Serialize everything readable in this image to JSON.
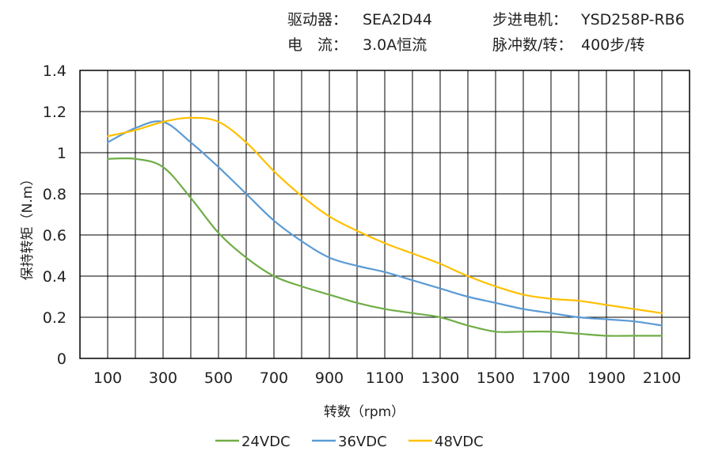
{
  "info": {
    "driver_label": "驱动器：",
    "driver_value": "SEA2D44",
    "current_label": "电　流：",
    "current_value": "3.0A恒流",
    "motor_label": "步进电机：",
    "motor_value": "YSD258P-RB6",
    "pulse_label": "脉冲数/转：",
    "pulse_value": "400步/转"
  },
  "chart_data": {
    "type": "line",
    "title": "",
    "xlabel": "转数（rpm）",
    "ylabel": "保持转矩（N.m）",
    "xlim": [
      100,
      2100
    ],
    "ylim": [
      0,
      1.4
    ],
    "x_ticks": [
      "100",
      "300",
      "500",
      "700",
      "900",
      "1100",
      "1300",
      "1500",
      "1700",
      "1900",
      "2100"
    ],
    "y_ticks": [
      "0",
      "0.2",
      "0.4",
      "0.6",
      "0.8",
      "1",
      "1.2",
      "1.4"
    ],
    "grid": true,
    "legend_position": "bottom",
    "x": [
      100,
      200,
      300,
      400,
      500,
      600,
      700,
      800,
      900,
      1000,
      1100,
      1200,
      1300,
      1400,
      1500,
      1600,
      1700,
      1800,
      1900,
      2000,
      2100
    ],
    "series": [
      {
        "name": "24VDC",
        "color": "#70AD47",
        "values": [
          0.97,
          0.97,
          0.93,
          0.78,
          0.61,
          0.49,
          0.4,
          0.35,
          0.31,
          0.27,
          0.24,
          0.22,
          0.2,
          0.16,
          0.13,
          0.13,
          0.13,
          0.12,
          0.11,
          0.11,
          0.11
        ]
      },
      {
        "name": "36VDC",
        "color": "#5B9BD5",
        "values": [
          1.05,
          1.12,
          1.15,
          1.05,
          0.93,
          0.8,
          0.67,
          0.57,
          0.49,
          0.45,
          0.42,
          0.38,
          0.34,
          0.3,
          0.27,
          0.24,
          0.22,
          0.2,
          0.19,
          0.18,
          0.16
        ]
      },
      {
        "name": "48VDC",
        "color": "#FFC000",
        "values": [
          1.08,
          1.11,
          1.15,
          1.17,
          1.15,
          1.05,
          0.91,
          0.79,
          0.69,
          0.62,
          0.56,
          0.51,
          0.46,
          0.4,
          0.35,
          0.31,
          0.29,
          0.28,
          0.26,
          0.24,
          0.22
        ]
      }
    ]
  }
}
